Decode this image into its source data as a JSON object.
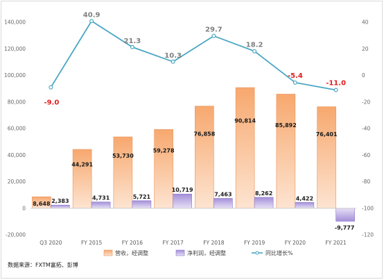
{
  "chart_data": {
    "type": "bar",
    "categories": [
      "Q3 2020",
      "FY 2015",
      "FY 2016",
      "FY 2017",
      "FY 2018",
      "FY 2019",
      "FY 2020",
      "FY 2021"
    ],
    "series": [
      {
        "name": "营收，经调整",
        "type": "bar",
        "axis": "left",
        "color": "#f5a56a",
        "values": [
          8648,
          44291,
          53730,
          59278,
          76858,
          90814,
          85892,
          76401
        ],
        "labels": [
          "8,648",
          "44,291",
          "53,730",
          "59,278",
          "76,858",
          "90,814",
          "85,892",
          "76,401"
        ]
      },
      {
        "name": "净利润，经调整",
        "type": "bar",
        "axis": "left",
        "color": "#a891d9",
        "values": [
          2383,
          4731,
          5721,
          10719,
          7463,
          8262,
          4422,
          -9777
        ],
        "labels": [
          "2,383",
          "4,731",
          "5,721",
          "10,719",
          "7,463",
          "8,262",
          "4,422",
          "-9,777"
        ]
      },
      {
        "name": "同比增长%",
        "type": "line",
        "axis": "right",
        "color": "#4aa6c2",
        "values": [
          -9.0,
          40.9,
          21.3,
          10.3,
          29.7,
          18.2,
          -5.4,
          -11.0
        ],
        "labels": [
          "-9.0",
          "40.9",
          "21.3",
          "10.3",
          "29.7",
          "18.2",
          "-5.4",
          "-11.0"
        ]
      }
    ],
    "y_left": {
      "ylim": [
        -20000,
        140000
      ],
      "ticks": [
        -20000,
        0,
        20000,
        40000,
        60000,
        80000,
        100000,
        120000,
        140000
      ],
      "tick_labels": [
        "-20,000",
        "0",
        "20,000",
        "40,000",
        "60,000",
        "80,000",
        "100,000",
        "120,000",
        "140,000"
      ]
    },
    "y_right": {
      "ylim": [
        -120,
        40
      ],
      "ticks": [
        -120,
        -100,
        -80,
        -60,
        -40,
        -20,
        0,
        20,
        40
      ],
      "tick_labels": [
        "-120",
        "-100",
        "-80",
        "-60",
        "-40",
        "-20",
        "0",
        "20",
        "40"
      ]
    },
    "grid": false,
    "legend": "bottom"
  },
  "source": "数据来源：FXTM富拓、彭博"
}
